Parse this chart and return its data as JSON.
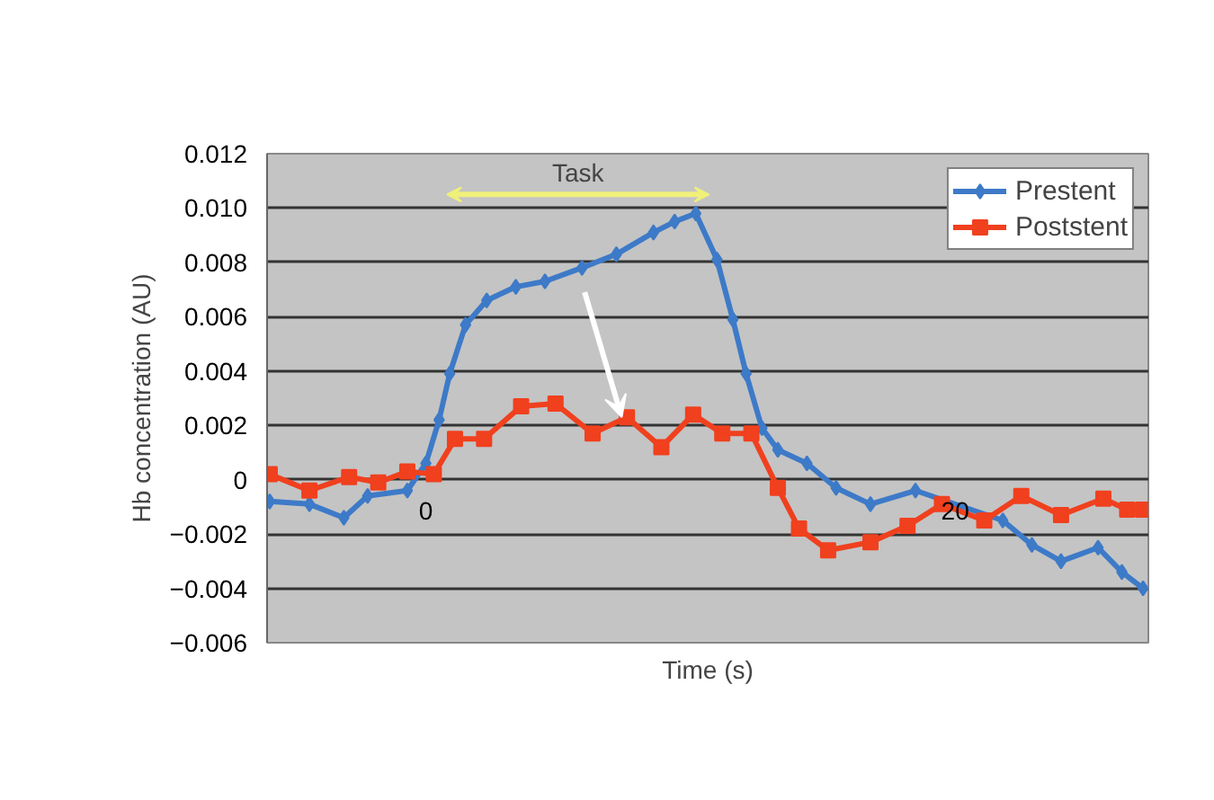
{
  "chart_data": {
    "type": "line",
    "xlabel": "Time (s)",
    "ylabel": "Hb concentration (AU)",
    "xlim": [
      -6,
      27.3
    ],
    "xticks": [
      0,
      20
    ],
    "ylim": [
      -0.006,
      0.012
    ],
    "yticks": [
      {
        "value": -0.006,
        "label": "−0.006"
      },
      {
        "value": -0.004,
        "label": "−0.004"
      },
      {
        "value": -0.002,
        "label": "−0.002"
      },
      0,
      0.002,
      0.004,
      0.006,
      0.008,
      {
        "value": 0.01,
        "label": "0.010"
      },
      0.012
    ],
    "grid": "y",
    "legend": "top right",
    "line_style": "solid",
    "annotations": [
      "Task"
    ],
    "series": [
      {
        "name": "Prestent",
        "color": "#3d7ac8",
        "marker": "diamond",
        "x": [
          -5.9,
          -4.4,
          -3.1,
          -2.2,
          -0.7,
          0,
          0.5,
          0.9,
          1.5,
          2.3,
          3.4,
          4.5,
          5.9,
          7.2,
          8.6,
          9.4,
          10.2,
          11.0,
          11.6,
          12.1,
          12.7,
          13.3,
          14.4,
          15.5,
          16.8,
          18.5,
          21.8,
          22.9,
          24.0,
          25.4,
          26.3,
          27.1
        ],
        "values": [
          -0.0008,
          -0.0009,
          -0.0014,
          -0.0006,
          -0.0004,
          0.0006,
          0.0022,
          0.0039,
          0.0057,
          0.0066,
          0.0071,
          0.0073,
          0.0078,
          0.0083,
          0.0091,
          0.0095,
          0.0098,
          0.0081,
          0.0059,
          0.0039,
          0.0019,
          0.0011,
          0.0006,
          -0.0003,
          -0.0009,
          -0.0004,
          -0.0015,
          -0.0024,
          -0.003,
          -0.0025,
          -0.0034,
          -0.004
        ]
      },
      {
        "name": "Poststent",
        "color": "#f0401e",
        "marker": "square",
        "x": [
          -5.9,
          -4.4,
          -2.9,
          -1.8,
          -0.7,
          0.3,
          1.1,
          2.2,
          3.6,
          4.9,
          6.3,
          7.6,
          8.9,
          10.1,
          11.2,
          12.3,
          13.3,
          14.1,
          15.2,
          16.8,
          18.2,
          19.5,
          21.1,
          22.5,
          24.0,
          25.6,
          26.5,
          27.1
        ],
        "values": [
          0.0002,
          -0.0004,
          0.0001,
          -0.0001,
          0.0003,
          0.0002,
          0.0015,
          0.0015,
          0.0027,
          0.0028,
          0.0017,
          0.0023,
          0.0012,
          0.0024,
          0.0017,
          0.0017,
          -0.0003,
          -0.0018,
          -0.0026,
          -0.0023,
          -0.0017,
          -0.0009,
          -0.0015,
          -0.0006,
          -0.0013,
          -0.0007,
          -0.0011,
          -0.0011
        ]
      }
    ]
  }
}
